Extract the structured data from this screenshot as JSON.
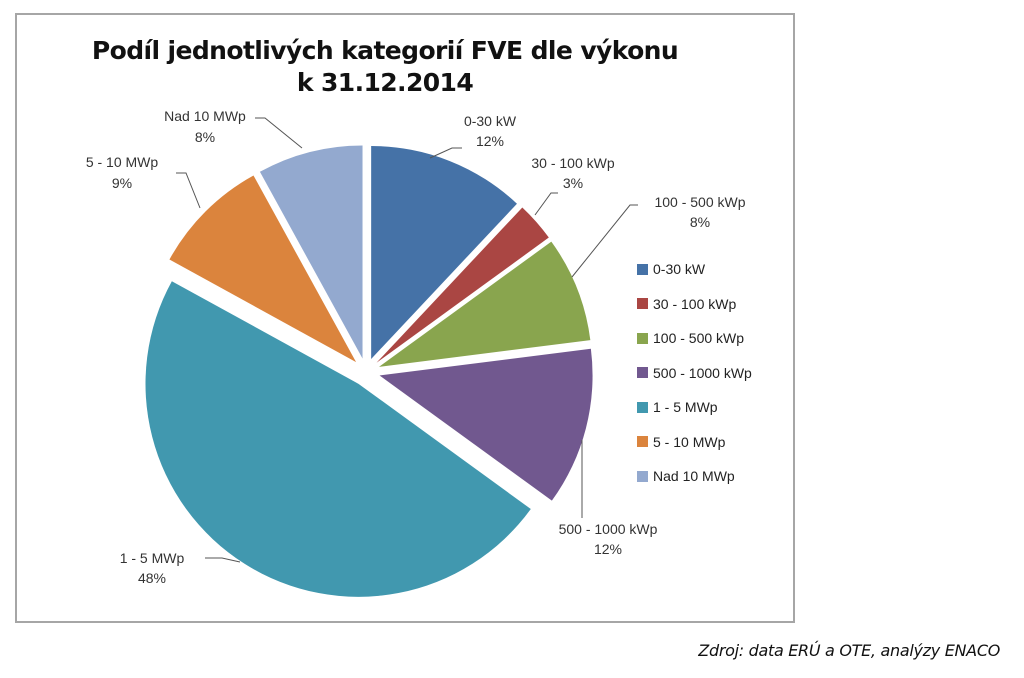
{
  "chart_data": {
    "type": "pie",
    "title": "Podíl jednotlivých kategorií FVE dle výkonu",
    "subtitle": "k 31.12.2014",
    "exploded": true,
    "start_angle": "12 o'clock, clockwise",
    "legend_position": "right",
    "categories": [
      "0-30 kW",
      "30 - 100 kWp",
      "100 - 500 kWp",
      "500 - 1000 kWp",
      "1 - 5 MWp",
      "5 - 10 MWp",
      "Nad 10 MWp"
    ],
    "values": [
      12,
      3,
      8,
      12,
      48,
      9,
      8
    ],
    "unit": "%",
    "data_labels": [
      "12%",
      "3%",
      "8%",
      "12%",
      "48%",
      "9%",
      "8%"
    ],
    "colors": [
      "#4572A7",
      "#AA4643",
      "#89A54E",
      "#71588F",
      "#4198AF",
      "#DB843D",
      "#93A9CF"
    ]
  },
  "title": {
    "line1": "Podíl jednotlivých kategorií FVE dle výkonu",
    "line2": "k 31.12.2014"
  },
  "legend": {
    "items": [
      {
        "label": "0-30 kW",
        "color": "#4572A7"
      },
      {
        "label": "30 - 100 kWp",
        "color": "#AA4643"
      },
      {
        "label": "100 - 500 kWp",
        "color": "#89A54E"
      },
      {
        "label": "500 - 1000 kWp",
        "color": "#71588F"
      },
      {
        "label": "1 - 5 MWp",
        "color": "#4198AF"
      },
      {
        "label": "5 - 10 MWp",
        "color": "#DB843D"
      },
      {
        "label": "Nad 10 MWp",
        "color": "#93A9CF"
      }
    ]
  },
  "source": "Zdroj: data ERÚ a OTE, analýzy ENACO"
}
